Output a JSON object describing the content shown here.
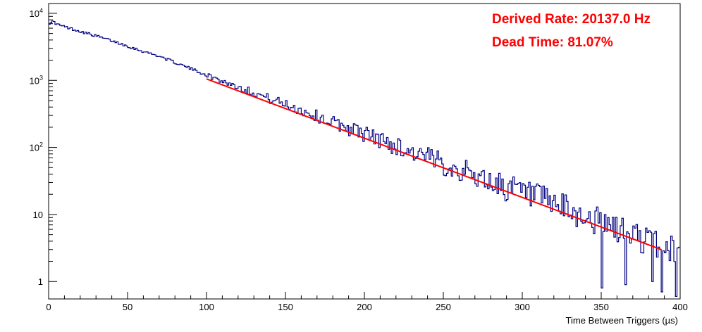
{
  "chart_data": {
    "type": "line",
    "xlabel": "Time Between Triggers (µs)",
    "ylabel": "",
    "xlim": [
      0,
      400
    ],
    "ylim": [
      0.55,
      14000
    ],
    "yscale": "log",
    "grid": false,
    "x_ticks": [
      0,
      50,
      100,
      150,
      200,
      250,
      300,
      350,
      400
    ],
    "x_tick_labels": [
      "0",
      "50",
      "100",
      "150",
      "200",
      "250",
      "300",
      "350",
      "400"
    ],
    "y_tick_labels": [
      {
        "value": 10000,
        "base": "10",
        "exp": "4"
      },
      {
        "value": 1000,
        "base": "10",
        "exp": "3"
      },
      {
        "value": 100,
        "base": "10",
        "exp": "2"
      },
      {
        "value": 10,
        "base": "10",
        "exp": ""
      },
      {
        "value": 1,
        "base": "1",
        "exp": ""
      }
    ],
    "annotations": [
      "Derived Rate: 20137.0 Hz",
      "Dead Time: 81.07%"
    ],
    "series": [
      {
        "kind": "histogram",
        "color": "#000080",
        "bin_width": 1,
        "x_start": 0,
        "x_end": 400,
        "points": [
          [
            0,
            6000
          ],
          [
            0.5,
            7200
          ],
          [
            2,
            7500
          ],
          [
            4,
            7300
          ],
          [
            5,
            6900
          ],
          [
            10,
            6300
          ],
          [
            20,
            5400
          ],
          [
            30,
            4600
          ],
          [
            40,
            3900
          ],
          [
            50,
            3250
          ],
          [
            60,
            2700
          ],
          [
            70,
            2300
          ],
          [
            80,
            1850
          ],
          [
            90,
            1500
          ],
          [
            100,
            1200
          ],
          [
            110,
            980
          ],
          [
            120,
            800
          ],
          [
            130,
            660
          ],
          [
            140,
            530
          ],
          [
            150,
            440
          ],
          [
            160,
            360
          ],
          [
            170,
            290
          ],
          [
            180,
            235
          ],
          [
            190,
            195
          ],
          [
            200,
            160
          ],
          [
            210,
            130
          ],
          [
            220,
            105
          ],
          [
            230,
            86
          ],
          [
            240,
            70
          ],
          [
            250,
            57
          ],
          [
            260,
            47
          ],
          [
            270,
            38
          ],
          [
            280,
            31
          ],
          [
            290,
            25
          ],
          [
            300,
            21
          ],
          [
            310,
            17
          ],
          [
            320,
            14
          ],
          [
            330,
            11
          ],
          [
            340,
            9
          ],
          [
            350,
            7.5
          ],
          [
            360,
            6
          ],
          [
            370,
            5
          ],
          [
            380,
            4
          ],
          [
            390,
            3.3
          ],
          [
            400,
            2.7
          ]
        ],
        "noise_from_x": 100,
        "noise_scale": 0.45,
        "noise_seed": 17,
        "deep_dips": [
          [
            350,
            0.8
          ],
          [
            365,
            0.9
          ],
          [
            382,
            1.0
          ],
          [
            388,
            0.7
          ],
          [
            397,
            0.6
          ]
        ]
      },
      {
        "kind": "fit",
        "color": "#ff0000",
        "x_start": 100,
        "x_end": 388,
        "y_start": 1050,
        "y_end": 3.0
      }
    ]
  }
}
